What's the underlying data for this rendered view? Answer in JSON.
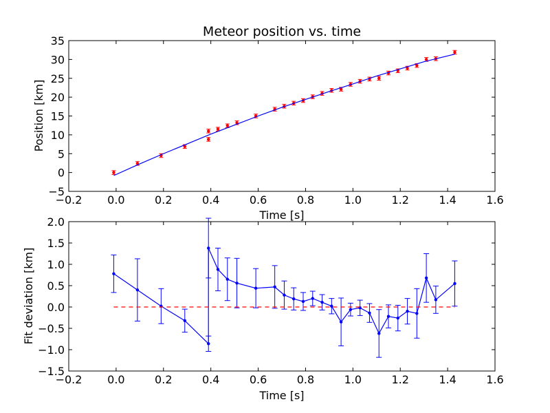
{
  "colors": {
    "fit_line": "#0000ff",
    "data_points": "#ff0000",
    "zero_line": "#ff0000",
    "axes": "#000000"
  },
  "chart_data": [
    {
      "type": "scatter",
      "title": "Meteor position vs. time",
      "xlabel": "Time [s]",
      "ylabel": "Position [km]",
      "xlim": [
        -0.2,
        1.6
      ],
      "ylim": [
        -5,
        35
      ],
      "xticks": [
        -0.2,
        0.0,
        0.2,
        0.4,
        0.6,
        0.8,
        1.0,
        1.2,
        1.4,
        1.6
      ],
      "yticks": [
        -5,
        0,
        5,
        10,
        15,
        20,
        25,
        30,
        35
      ],
      "xtick_labels": [
        "−0.2",
        "0.0",
        "0.2",
        "0.4",
        "0.6",
        "0.8",
        "1.0",
        "1.2",
        "1.4",
        "1.6"
      ],
      "ytick_labels": [
        "−5",
        "0",
        "5",
        "10",
        "15",
        "20",
        "25",
        "30",
        "35"
      ],
      "grid": false,
      "series": [
        {
          "kind": "errorbar-points",
          "color": "#ff0000",
          "x": [
            -0.01,
            0.09,
            0.19,
            0.29,
            0.39,
            0.39,
            0.43,
            0.47,
            0.51,
            0.59,
            0.67,
            0.71,
            0.75,
            0.79,
            0.83,
            0.87,
            0.91,
            0.95,
            0.99,
            1.03,
            1.07,
            1.11,
            1.15,
            1.19,
            1.23,
            1.27,
            1.31,
            1.35,
            1.43
          ],
          "y": [
            0.0,
            2.4,
            4.5,
            6.9,
            8.8,
            11.0,
            11.5,
            12.4,
            13.2,
            15.0,
            16.8,
            17.6,
            18.4,
            19.1,
            20.1,
            21.0,
            21.8,
            22.1,
            23.4,
            24.2,
            24.8,
            25.0,
            26.4,
            27.0,
            27.7,
            28.4,
            30.0,
            30.2,
            31.9
          ]
        },
        {
          "kind": "line",
          "color": "#0000ff",
          "x": [
            -0.01,
            0.1,
            0.2,
            0.3,
            0.4,
            0.5,
            0.6,
            0.7,
            0.8,
            0.9,
            1.0,
            1.1,
            1.2,
            1.3,
            1.43
          ],
          "y": [
            -0.8,
            2.3,
            5.0,
            7.6,
            10.2,
            12.6,
            15.0,
            17.3,
            19.4,
            21.5,
            23.5,
            25.6,
            27.5,
            29.4,
            31.4
          ]
        }
      ]
    },
    {
      "type": "line",
      "xlabel": "Time [s]",
      "ylabel": "Fit deviation [km]",
      "xlim": [
        -0.2,
        1.6
      ],
      "ylim": [
        -1.5,
        2.0
      ],
      "xticks": [
        -0.2,
        0.0,
        0.2,
        0.4,
        0.6,
        0.8,
        1.0,
        1.2,
        1.4,
        1.6
      ],
      "yticks": [
        -1.5,
        -1.0,
        -0.5,
        0.0,
        0.5,
        1.0,
        1.5,
        2.0
      ],
      "xtick_labels": [
        "−0.2",
        "0.0",
        "0.2",
        "0.4",
        "0.6",
        "0.8",
        "1.0",
        "1.2",
        "1.4",
        "1.6"
      ],
      "ytick_labels": [
        "−1.5",
        "−1.0",
        "−0.5",
        "0.0",
        "0.5",
        "1.0",
        "1.5",
        "2.0"
      ],
      "grid": false,
      "series": [
        {
          "kind": "errorbar-line",
          "color": "#0000ff",
          "x": [
            -0.01,
            0.09,
            0.19,
            0.29,
            0.39,
            0.39,
            0.43,
            0.47,
            0.51,
            0.59,
            0.67,
            0.71,
            0.75,
            0.79,
            0.83,
            0.87,
            0.91,
            0.95,
            0.99,
            1.03,
            1.07,
            1.11,
            1.15,
            1.19,
            1.23,
            1.27,
            1.31,
            1.35,
            1.43
          ],
          "y": [
            0.78,
            0.4,
            0.02,
            -0.32,
            -0.86,
            1.38,
            0.88,
            0.65,
            0.56,
            0.44,
            0.47,
            0.28,
            0.19,
            0.13,
            0.2,
            0.11,
            0.02,
            -0.35,
            -0.06,
            -0.02,
            -0.14,
            -0.62,
            -0.22,
            -0.26,
            -0.1,
            -0.15,
            0.68,
            0.17,
            0.55
          ],
          "yerr": [
            0.44,
            0.73,
            0.41,
            0.27,
            0.18,
            0.7,
            0.5,
            0.5,
            0.58,
            0.46,
            0.5,
            0.33,
            0.26,
            0.21,
            0.17,
            0.18,
            0.18,
            0.56,
            0.15,
            0.18,
            0.22,
            0.56,
            0.27,
            0.3,
            0.3,
            0.58,
            0.57,
            0.32,
            0.53
          ]
        },
        {
          "kind": "reference-line",
          "style": "dashed",
          "color": "#ff0000",
          "x": [
            -0.01,
            1.43
          ],
          "y": [
            0.0,
            0.0
          ]
        }
      ]
    }
  ]
}
